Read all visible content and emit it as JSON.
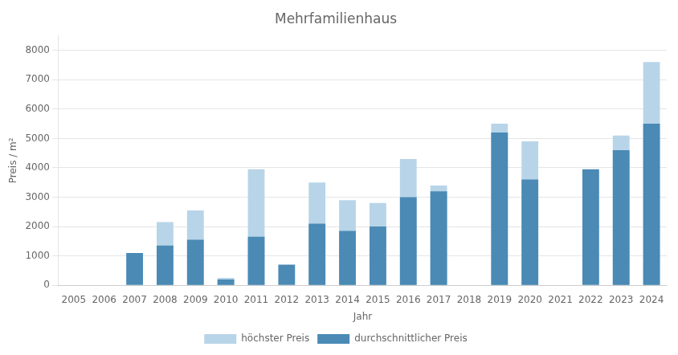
{
  "chart_data": {
    "type": "bar",
    "title": "Mehrfamilienhaus",
    "x_label": "Jahr",
    "y_label": "Preis / m²",
    "categories": [
      "2005",
      "2006",
      "2007",
      "2008",
      "2009",
      "2010",
      "2011",
      "2012",
      "2013",
      "2014",
      "2015",
      "2016",
      "2017",
      "2018",
      "2019",
      "2020",
      "2021",
      "2022",
      "2023",
      "2024"
    ],
    "series": [
      {
        "name": "höchster Preis",
        "color": "#b8d4e8",
        "values": [
          0,
          0,
          0,
          2150,
          2550,
          250,
          3950,
          0,
          3500,
          2900,
          2800,
          4300,
          3400,
          0,
          5500,
          4900,
          0,
          0,
          5100,
          7600
        ]
      },
      {
        "name": "durchschnittlicher Preis",
        "color": "#4a8ab5",
        "values": [
          0,
          0,
          1100,
          1350,
          1550,
          200,
          1650,
          700,
          2100,
          1850,
          2000,
          3000,
          3200,
          0,
          5200,
          3600,
          0,
          3950,
          4600,
          5500
        ]
      }
    ],
    "ylim": [
      0,
      8500
    ],
    "yticks": [
      0,
      1000,
      2000,
      3000,
      4000,
      5000,
      6000,
      7000,
      8000
    ],
    "grid": true,
    "legend": "bottom"
  }
}
